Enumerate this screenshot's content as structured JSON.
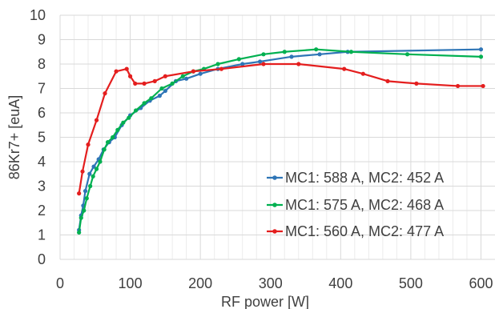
{
  "chart_data": {
    "type": "line",
    "title": "",
    "xlabel": "RF power [W]",
    "ylabel": "86Kr7+ [euA]",
    "xlim": [
      0,
      620
    ],
    "ylim": [
      0,
      10
    ],
    "xticks": [
      0,
      100,
      200,
      300,
      400,
      500,
      600
    ],
    "yticks": [
      0,
      1,
      2,
      3,
      4,
      5,
      6,
      7,
      8,
      9,
      10
    ],
    "x_minor_step": 20,
    "grid": true,
    "legend_position": "lower-right",
    "series": [
      {
        "name": "MC1: 588 A, MC2: 452 A",
        "color": "#2e75b6",
        "points": [
          [
            27,
            1.2
          ],
          [
            30,
            1.8
          ],
          [
            33,
            2.2
          ],
          [
            36,
            2.8
          ],
          [
            42,
            3.5
          ],
          [
            48,
            3.8
          ],
          [
            55,
            4.1
          ],
          [
            62,
            4.5
          ],
          [
            70,
            4.8
          ],
          [
            78,
            5.0
          ],
          [
            88,
            5.5
          ],
          [
            100,
            5.9
          ],
          [
            115,
            6.2
          ],
          [
            128,
            6.5
          ],
          [
            142,
            6.7
          ],
          [
            150,
            6.9
          ],
          [
            165,
            7.3
          ],
          [
            180,
            7.4
          ],
          [
            200,
            7.6
          ],
          [
            225,
            7.8
          ],
          [
            260,
            8.0
          ],
          [
            285,
            8.1
          ],
          [
            330,
            8.3
          ],
          [
            370,
            8.4
          ],
          [
            410,
            8.5
          ],
          [
            600,
            8.6
          ]
        ]
      },
      {
        "name": "MC1: 575 A, MC2: 468 A",
        "color": "#00b050",
        "points": [
          [
            27,
            1.1
          ],
          [
            30,
            1.7
          ],
          [
            34,
            2.0
          ],
          [
            38,
            2.5
          ],
          [
            43,
            3.0
          ],
          [
            47,
            3.4
          ],
          [
            52,
            3.7
          ],
          [
            57,
            4.0
          ],
          [
            63,
            4.5
          ],
          [
            68,
            4.8
          ],
          [
            75,
            5.0
          ],
          [
            82,
            5.3
          ],
          [
            90,
            5.6
          ],
          [
            98,
            5.8
          ],
          [
            108,
            6.1
          ],
          [
            120,
            6.4
          ],
          [
            130,
            6.6
          ],
          [
            145,
            7.0
          ],
          [
            160,
            7.2
          ],
          [
            175,
            7.5
          ],
          [
            190,
            7.7
          ],
          [
            205,
            7.8
          ],
          [
            225,
            8.0
          ],
          [
            255,
            8.2
          ],
          [
            290,
            8.4
          ],
          [
            320,
            8.5
          ],
          [
            365,
            8.6
          ],
          [
            415,
            8.5
          ],
          [
            495,
            8.4
          ],
          [
            600,
            8.3
          ]
        ]
      },
      {
        "name": "MC1: 560 A, MC2: 477 A",
        "color": "#e41e1e",
        "points": [
          [
            27,
            2.7
          ],
          [
            32,
            3.6
          ],
          [
            40,
            4.7
          ],
          [
            52,
            5.7
          ],
          [
            64,
            6.8
          ],
          [
            80,
            7.7
          ],
          [
            95,
            7.8
          ],
          [
            100,
            7.5
          ],
          [
            107,
            7.2
          ],
          [
            120,
            7.2
          ],
          [
            135,
            7.3
          ],
          [
            150,
            7.5
          ],
          [
            190,
            7.7
          ],
          [
            230,
            7.8
          ],
          [
            290,
            8.0
          ],
          [
            340,
            8.0
          ],
          [
            405,
            7.8
          ],
          [
            432,
            7.6
          ],
          [
            467,
            7.3
          ],
          [
            508,
            7.2
          ],
          [
            567,
            7.1
          ],
          [
            603,
            7.1
          ]
        ]
      }
    ]
  }
}
